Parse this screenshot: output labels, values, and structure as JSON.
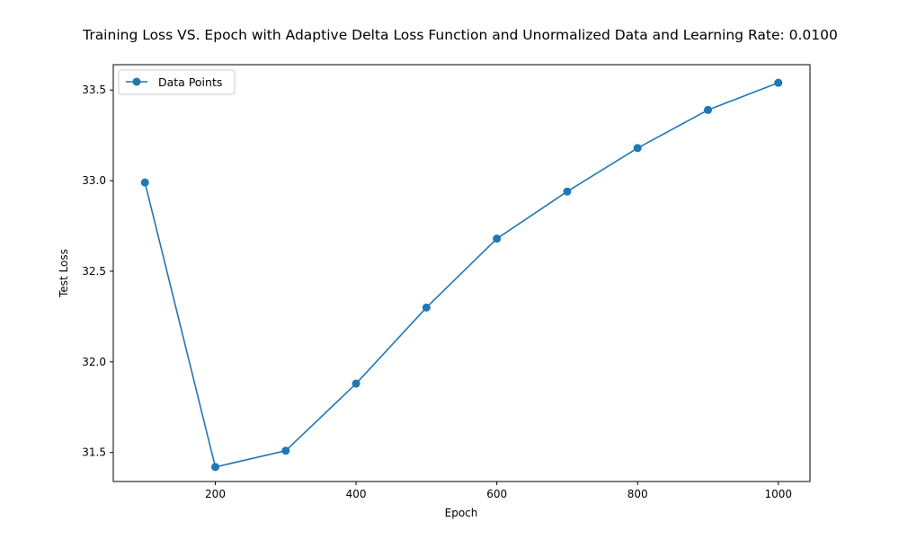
{
  "chart_data": {
    "type": "line",
    "title": "Training Loss VS. Epoch with Adaptive Delta Loss Function and Unormalized Data and Learning Rate: 0.0100",
    "xlabel": "Epoch",
    "ylabel": "Test Loss",
    "xlim": [
      55,
      1045
    ],
    "ylim": [
      31.34,
      33.64
    ],
    "xticks": [
      200,
      400,
      600,
      800,
      1000
    ],
    "yticks": [
      31.5,
      32.0,
      32.5,
      33.0,
      33.5
    ],
    "xtick_labels": [
      "200",
      "400",
      "600",
      "800",
      "1000"
    ],
    "ytick_labels": [
      "31.5",
      "32.0",
      "32.5",
      "33.0",
      "33.5"
    ],
    "grid": false,
    "legend_position": "top-left",
    "series": [
      {
        "name": "Data Points",
        "color": "#1f77b4",
        "marker": "circle",
        "x": [
          100,
          200,
          300,
          400,
          500,
          600,
          700,
          800,
          900,
          1000
        ],
        "values": [
          32.99,
          31.42,
          31.51,
          31.88,
          32.3,
          32.68,
          32.94,
          33.18,
          33.39,
          33.54
        ]
      }
    ]
  }
}
